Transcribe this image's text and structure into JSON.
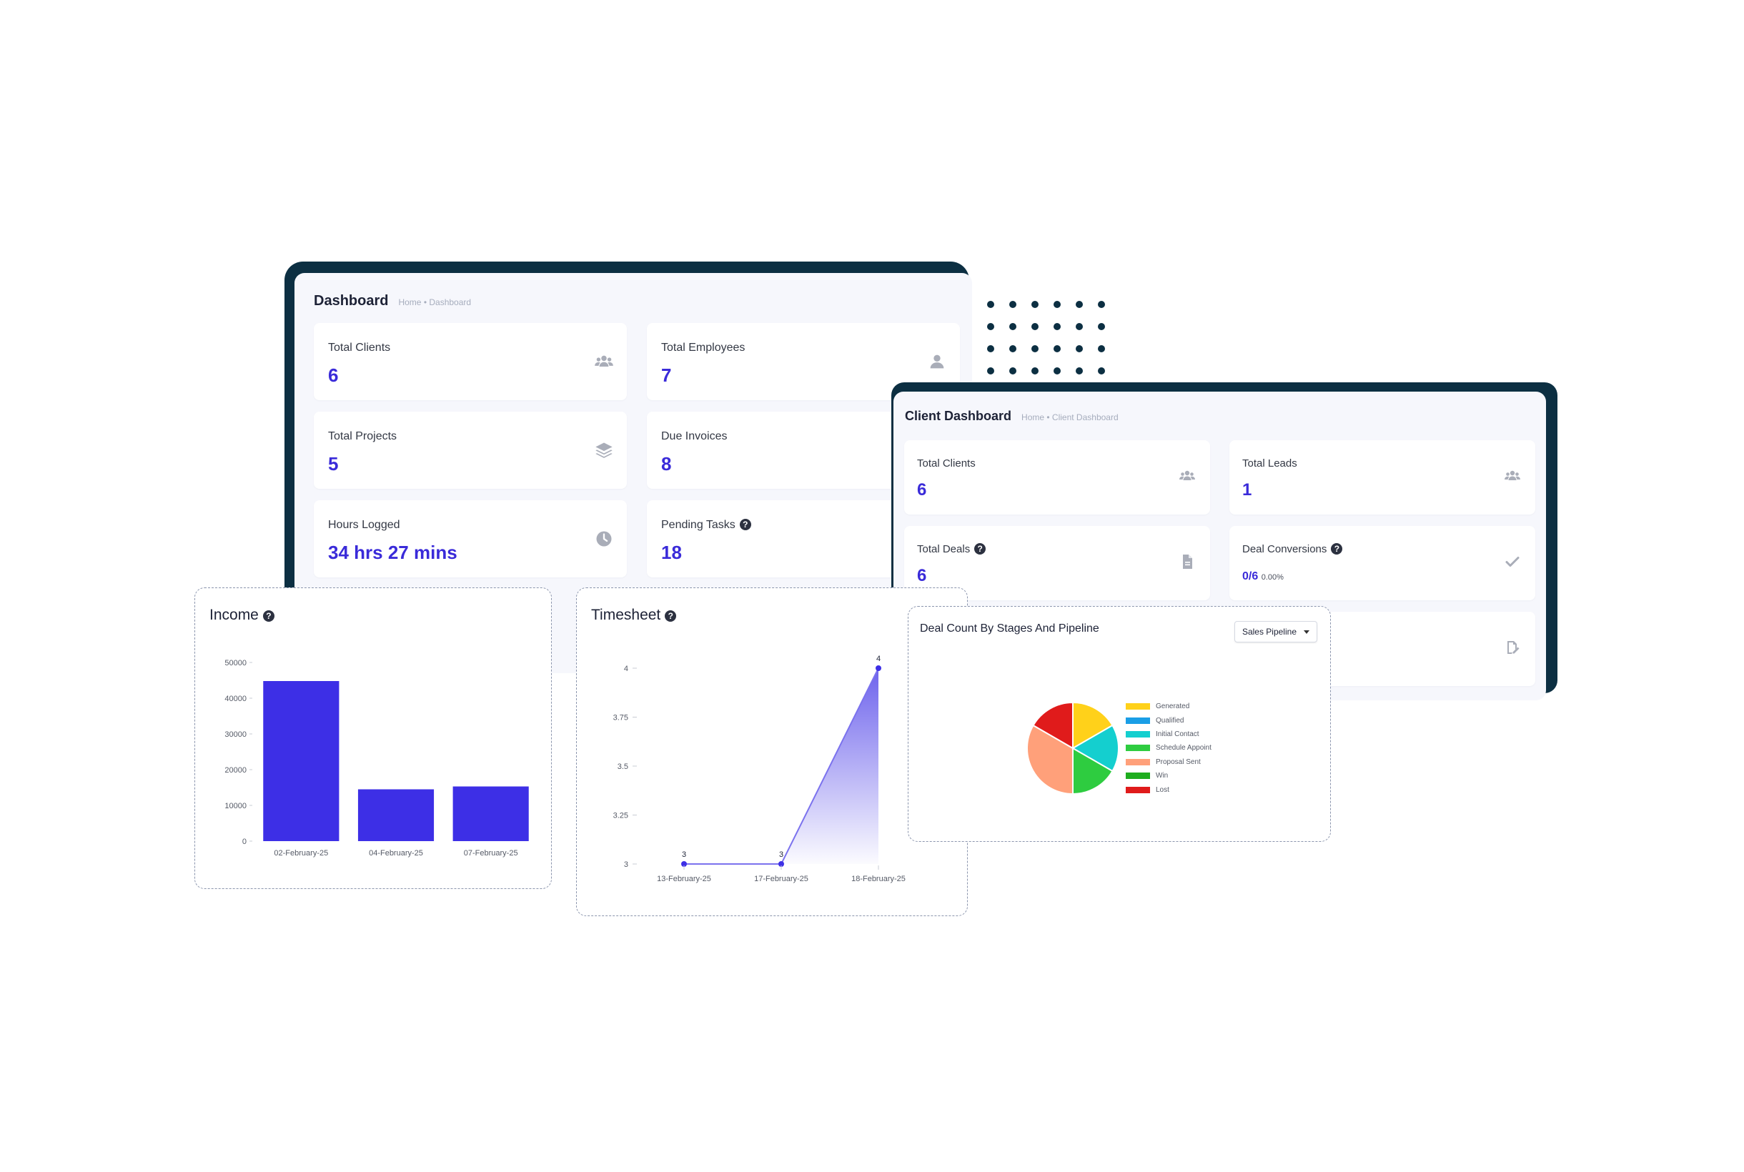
{
  "main_dashboard": {
    "title": "Dashboard",
    "breadcrumb": "Home • Dashboard",
    "cards": [
      {
        "label": "Total Clients",
        "value": "6",
        "icon": "users-icon"
      },
      {
        "label": "Total Employees",
        "value": "7",
        "icon": "user-icon"
      },
      {
        "label": "Total Projects",
        "value": "5",
        "icon": "layers-icon"
      },
      {
        "label": "Due Invoices",
        "value": "8"
      },
      {
        "label": "Hours Logged",
        "value": "34 hrs 27 mins",
        "icon": "clock-icon"
      },
      {
        "label": "Pending Tasks",
        "value": "18",
        "help": "?"
      }
    ]
  },
  "client_dashboard": {
    "title": "Client Dashboard",
    "breadcrumb": "Home • Client Dashboard",
    "cards": [
      {
        "label": "Total Clients",
        "value": "6",
        "icon": "users-icon"
      },
      {
        "label": "Total Leads",
        "value": "1",
        "icon": "users-icon"
      },
      {
        "label": "Total Deals",
        "value": "6",
        "help": "?",
        "icon": "file-icon"
      },
      {
        "label": "Deal Conversions",
        "value": "0/6",
        "sub": "0.00%",
        "help": "?",
        "icon": "check-icon"
      },
      {
        "icon": "edit-icon"
      }
    ]
  },
  "income": {
    "title": "Income",
    "help": "?",
    "chart_data": {
      "type": "bar",
      "title": "Income",
      "categories": [
        "02-February-25",
        "04-February-25",
        "07-February-25"
      ],
      "values": [
        44800,
        14500,
        15300
      ],
      "ylim": [
        0,
        50000
      ],
      "yticks": [
        0,
        10000,
        20000,
        30000,
        40000,
        50000
      ],
      "color": "#3d2fe6"
    }
  },
  "timesheet": {
    "title": "Timesheet",
    "help": "?",
    "chart_data": {
      "type": "area",
      "title": "Timesheet",
      "categories": [
        "13-February-25",
        "17-February-25",
        "18-February-25"
      ],
      "values": [
        3,
        3,
        4
      ],
      "ylim": [
        3,
        4
      ],
      "yticks": [
        "3",
        "3.25",
        "3.5",
        "3.75",
        "4"
      ],
      "data_labels": [
        "3",
        "3",
        "4"
      ],
      "color": "#3d2fe6"
    }
  },
  "deals": {
    "title": "Deal Count By Stages And Pipeline",
    "select": {
      "value": "Sales Pipeline"
    },
    "chart_data": {
      "type": "pie",
      "title": "Deal Count By Stages And Pipeline",
      "labels": [
        "Generated",
        "Qualified",
        "Initial Contact",
        "Schedule Appoint",
        "Proposal Sent",
        "Win",
        "Lost"
      ],
      "values": [
        1,
        0,
        1,
        1,
        2,
        0,
        1
      ],
      "colors": [
        "#ffd11a",
        "#1a9ee6",
        "#14cfcf",
        "#2ecc40",
        "#ffa07a",
        "#1fad1f",
        "#e01b1b"
      ]
    }
  }
}
